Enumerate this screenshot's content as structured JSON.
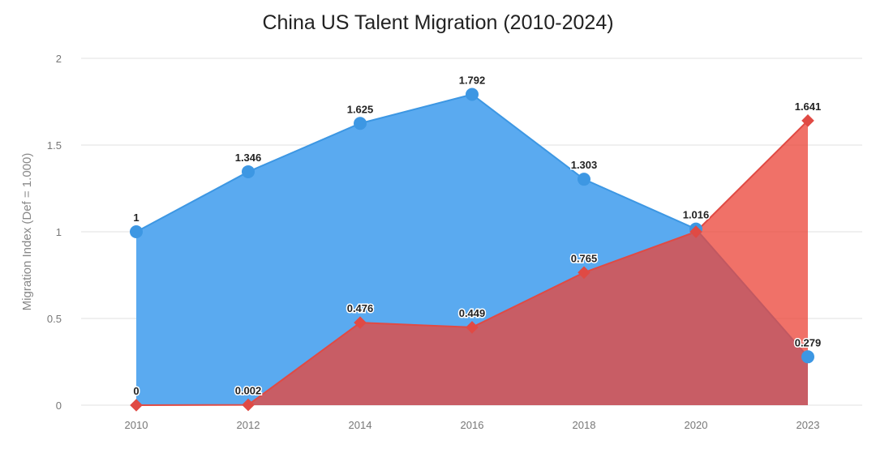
{
  "chart_data": {
    "type": "area",
    "title": "China US Talent Migration (2010-2024)",
    "xlabel": "",
    "ylabel": "Migration Index (Def = 1.000)",
    "categories": [
      "2010",
      "2012",
      "2014",
      "2016",
      "2018",
      "2020",
      "2023"
    ],
    "ylim": [
      0,
      2
    ],
    "yticks": [
      "0",
      "0.5",
      "1",
      "1.5",
      "2"
    ],
    "grid": true,
    "legend": "none",
    "series": [
      {
        "values": [
          1,
          1.346,
          1.625,
          1.792,
          1.303,
          1.016,
          0.279
        ],
        "labels": [
          "1",
          "1.346",
          "1.625",
          "1.792",
          "1.303",
          "1.016",
          "0.279"
        ],
        "marker": "circle",
        "line_color": "#3d97e3",
        "fill_color": "#5aaaf0"
      },
      {
        "values": [
          0,
          0.002,
          0.476,
          0.449,
          0.765,
          1.0,
          1.641
        ],
        "labels": [
          "0",
          "0.002",
          "0.476",
          "0.449",
          "0.765",
          "",
          "1.641"
        ],
        "marker": "diamond",
        "line_color": "#e04a44",
        "fill_color": "#eb4439"
      }
    ]
  }
}
